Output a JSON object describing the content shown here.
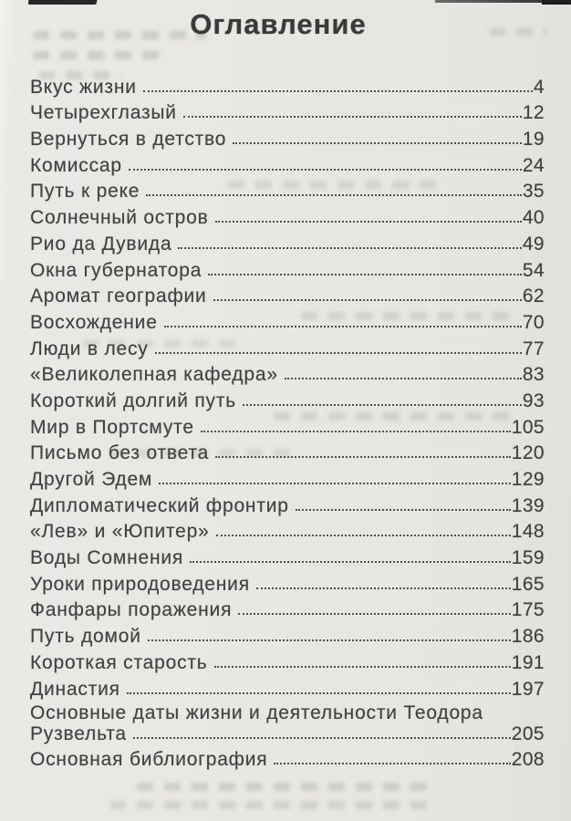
{
  "colors": {
    "page_background": "#e9e7e4",
    "text": "#424242",
    "title": "#3a3a3a",
    "leader_dots": "#4f4f4f"
  },
  "page": {
    "title": "Оглавление"
  },
  "toc": {
    "entries": [
      {
        "title": "Вкус жизни",
        "page": "4"
      },
      {
        "title": "Четырехглазый",
        "page": "12"
      },
      {
        "title": "Вернуться в детство",
        "page": "19"
      },
      {
        "title": "Комиссар",
        "page": "24"
      },
      {
        "title": "Путь к реке",
        "page": "35"
      },
      {
        "title": "Солнечный остров",
        "page": "40"
      },
      {
        "title": "Рио да Дувида",
        "page": "49"
      },
      {
        "title": "Окна губернатора",
        "page": "54"
      },
      {
        "title": "Аромат географии",
        "page": "62"
      },
      {
        "title": "Восхождение",
        "page": "70"
      },
      {
        "title": "Люди в лесу",
        "page": "77"
      },
      {
        "title": "«Великолепная кафедра»",
        "page": "83"
      },
      {
        "title": "Короткий долгий путь",
        "page": "93"
      },
      {
        "title": "Мир в Портсмуте",
        "page": "105"
      },
      {
        "title": "Письмо без ответа",
        "page": "120"
      },
      {
        "title": "Другой Эдем",
        "page": "129"
      },
      {
        "title": "Дипломатический фронтир",
        "page": "139"
      },
      {
        "title": "«Лев» и «Юпитер»",
        "page": "148"
      },
      {
        "title": "Воды Сомнения",
        "page": "159"
      },
      {
        "title": "Уроки природоведения",
        "page": "165"
      },
      {
        "title": "Фанфары поражения",
        "page": "175"
      },
      {
        "title": "Путь домой",
        "page": "186"
      },
      {
        "title": "Короткая старость",
        "page": "191"
      },
      {
        "title": "Династия",
        "page": "197"
      },
      {
        "title": "Основные даты жизни и деятельности Теодора",
        "title_line2": "Рузвельта",
        "page": "205"
      },
      {
        "title": "Основная библиография",
        "page": "208"
      }
    ]
  }
}
